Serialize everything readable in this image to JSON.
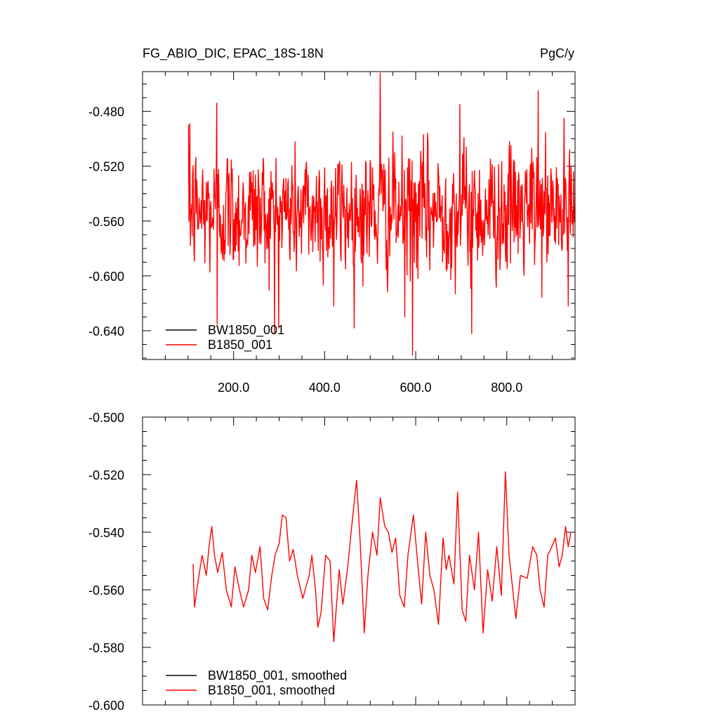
{
  "figure": {
    "title_left": "FG_ABIO_DIC, EPAC_18S-18N",
    "title_right": "PgC/y"
  },
  "colors": {
    "series_1": "#000000",
    "series_2": "#ff0000",
    "frame": "#000000"
  },
  "chart_data": [
    {
      "type": "line",
      "title": "FG_ABIO_DIC, EPAC_18S-18N",
      "units": "PgC/y",
      "xlabel": "",
      "ylabel": "",
      "xlim": [
        0,
        950
      ],
      "ylim": [
        -0.661,
        -0.451
      ],
      "x_ticks": [
        200,
        400,
        600,
        800
      ],
      "x_tick_labels": [
        "200.0",
        "400.0",
        "600.0",
        "800.0"
      ],
      "y_ticks": [
        -0.48,
        -0.52,
        -0.56,
        -0.6,
        -0.64
      ],
      "y_tick_labels": [
        "-0.480",
        "-0.520",
        "-0.560",
        "-0.600",
        "-0.640"
      ],
      "grid": false,
      "legend_position": "bottom-left",
      "series": [
        {
          "name": "BW1850_001",
          "color": "#000000",
          "x": [],
          "y": []
        },
        {
          "name": "B1850_001",
          "color": "#ff0000",
          "x_start": 101,
          "x_end": 950,
          "y_mean": -0.553,
          "y_std": 0.024,
          "y_min": -0.658,
          "y_max": -0.452,
          "notable_points": [
            {
              "x": 104,
              "y": -0.489
            },
            {
              "x": 163,
              "y": -0.474
            },
            {
              "x": 164,
              "y": -0.635
            },
            {
              "x": 290,
              "y": -0.642
            },
            {
              "x": 420,
              "y": -0.622
            },
            {
              "x": 522,
              "y": -0.452
            },
            {
              "x": 576,
              "y": -0.63
            },
            {
              "x": 593,
              "y": -0.658
            },
            {
              "x": 697,
              "y": -0.475
            },
            {
              "x": 723,
              "y": -0.642
            },
            {
              "x": 869,
              "y": -0.465
            },
            {
              "x": 935,
              "y": -0.622
            }
          ]
        }
      ]
    },
    {
      "type": "line",
      "title": "",
      "xlabel": "",
      "ylabel": "",
      "xlim": [
        0,
        950
      ],
      "ylim": [
        -0.6,
        -0.5
      ],
      "x_ticks": [
        200,
        400,
        600,
        800
      ],
      "y_ticks": [
        -0.5,
        -0.52,
        -0.54,
        -0.56,
        -0.58,
        -0.6
      ],
      "y_tick_labels": [
        "-0.500",
        "-0.520",
        "-0.540",
        "-0.560",
        "-0.580",
        "-0.600"
      ],
      "grid": false,
      "legend_position": "bottom-left",
      "series": [
        {
          "name": "BW1850_001, smoothed",
          "color": "#000000",
          "x": [],
          "y": []
        },
        {
          "name": "B1850_001, smoothed",
          "color": "#ff0000",
          "x": [
            111,
            114,
            122,
            131,
            140,
            146,
            152,
            158,
            165,
            175,
            184,
            195,
            203,
            213,
            222,
            233,
            240,
            248,
            258,
            266,
            275,
            283,
            291,
            300,
            307,
            315,
            323,
            331,
            340,
            352,
            366,
            372,
            380,
            385,
            392,
            402,
            412,
            420,
            432,
            440,
            450,
            460,
            470,
            478,
            487,
            495,
            505,
            515,
            522,
            532,
            540,
            548,
            556,
            565,
            575,
            583,
            595,
            604,
            613,
            622,
            631,
            640,
            650,
            660,
            667,
            673,
            684,
            692,
            702,
            710,
            718,
            729,
            738,
            748,
            758,
            768,
            778,
            788,
            797,
            805,
            820,
            830,
            845,
            857,
            866,
            873,
            882,
            890,
            899,
            907,
            915,
            922,
            929,
            935,
            941
          ],
          "y": [
            -0.551,
            -0.566,
            -0.557,
            -0.548,
            -0.555,
            -0.545,
            -0.538,
            -0.548,
            -0.554,
            -0.547,
            -0.56,
            -0.566,
            -0.552,
            -0.56,
            -0.566,
            -0.56,
            -0.548,
            -0.554,
            -0.545,
            -0.563,
            -0.567,
            -0.556,
            -0.548,
            -0.544,
            -0.534,
            -0.535,
            -0.55,
            -0.546,
            -0.555,
            -0.563,
            -0.555,
            -0.548,
            -0.56,
            -0.573,
            -0.568,
            -0.548,
            -0.55,
            -0.578,
            -0.553,
            -0.565,
            -0.553,
            -0.537,
            -0.522,
            -0.543,
            -0.575,
            -0.555,
            -0.54,
            -0.548,
            -0.528,
            -0.538,
            -0.54,
            -0.547,
            -0.542,
            -0.562,
            -0.566,
            -0.548,
            -0.534,
            -0.55,
            -0.565,
            -0.54,
            -0.555,
            -0.56,
            -0.572,
            -0.542,
            -0.553,
            -0.548,
            -0.558,
            -0.526,
            -0.567,
            -0.571,
            -0.548,
            -0.56,
            -0.54,
            -0.575,
            -0.553,
            -0.564,
            -0.545,
            -0.562,
            -0.519,
            -0.548,
            -0.57,
            -0.555,
            -0.556,
            -0.545,
            -0.548,
            -0.56,
            -0.566,
            -0.548,
            -0.545,
            -0.542,
            -0.552,
            -0.548,
            -0.538,
            -0.545,
            -0.54
          ]
        }
      ]
    }
  ],
  "legends": [
    {
      "items": [
        "BW1850_001",
        "B1850_001"
      ]
    },
    {
      "items": [
        "BW1850_001, smoothed",
        "B1850_001, smoothed"
      ]
    }
  ]
}
